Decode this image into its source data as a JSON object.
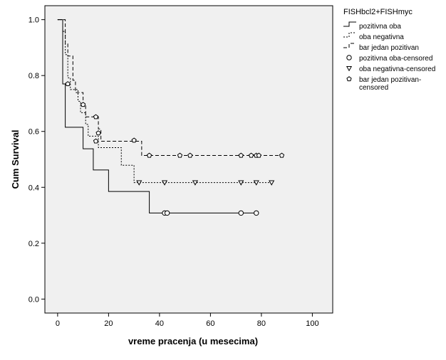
{
  "chart_data": {
    "type": "line",
    "xlabel": "vreme pracenja (u mesecima)",
    "ylabel": "Cum Survival",
    "xlim": [
      -5,
      108
    ],
    "ylim": [
      -0.05,
      1.05
    ],
    "x_ticks": [
      "0",
      "20",
      "40",
      "60",
      "80",
      "100"
    ],
    "x_tick_values": [
      0,
      20,
      40,
      60,
      80,
      100
    ],
    "y_ticks": [
      "0.0",
      "0.2",
      "0.4",
      "0.6",
      "0.8",
      "1.0"
    ],
    "y_tick_values": [
      0.0,
      0.2,
      0.4,
      0.6,
      0.8,
      1.0
    ],
    "legend_title": "FISHbcl2+FISHmyc",
    "legend_position": "right",
    "series": [
      {
        "name": "pozitivna oba",
        "dash": "solid",
        "steps": [
          [
            1,
            1.0
          ],
          [
            2,
            0.77
          ],
          [
            3,
            0.615
          ],
          [
            10,
            0.538
          ],
          [
            14,
            0.462
          ],
          [
            20,
            0.385
          ],
          [
            36,
            0.308
          ],
          [
            78,
            0.308
          ]
        ],
        "censored_marker": "circle",
        "censored_name": "pozitivna oba-censored",
        "censored": [
          [
            42,
            0.308
          ],
          [
            43,
            0.308
          ],
          [
            72,
            0.308
          ],
          [
            78,
            0.308
          ]
        ]
      },
      {
        "name": "oba negativna",
        "dash": "dotted",
        "steps": [
          [
            1,
            1.0
          ],
          [
            2,
            0.958
          ],
          [
            3,
            0.875
          ],
          [
            4,
            0.792
          ],
          [
            5,
            0.75
          ],
          [
            8,
            0.708
          ],
          [
            9,
            0.667
          ],
          [
            11,
            0.625
          ],
          [
            12,
            0.583
          ],
          [
            16,
            0.542
          ],
          [
            25,
            0.479
          ],
          [
            30,
            0.417
          ],
          [
            84,
            0.417
          ]
        ],
        "censored_marker": "triangle",
        "censored_name": "oba negativna-censored",
        "censored": [
          [
            32,
            0.417
          ],
          [
            42,
            0.417
          ],
          [
            54,
            0.417
          ],
          [
            72,
            0.417
          ],
          [
            78,
            0.417
          ],
          [
            84,
            0.417
          ]
        ]
      },
      {
        "name": "bar jedan pozitivan",
        "dash": "dashed",
        "steps": [
          [
            2,
            1.0
          ],
          [
            3,
            0.913
          ],
          [
            4,
            0.87
          ],
          [
            6,
            0.783
          ],
          [
            7,
            0.739
          ],
          [
            10,
            0.696
          ],
          [
            11,
            0.652
          ],
          [
            16,
            0.609
          ],
          [
            17,
            0.565
          ],
          [
            33,
            0.514
          ],
          [
            88,
            0.514
          ]
        ],
        "censored_marker": "pentagon",
        "censored_name": "bar jedan pozitivan-censored",
        "censored": [
          [
            4,
            0.77
          ],
          [
            15,
            0.565
          ],
          [
            36,
            0.514
          ],
          [
            48,
            0.514
          ],
          [
            52,
            0.514
          ],
          [
            72,
            0.514
          ],
          [
            76,
            0.514
          ],
          [
            78,
            0.514
          ],
          [
            79,
            0.514
          ],
          [
            30,
            0.568
          ],
          [
            88,
            0.514
          ],
          [
            15,
            0.652
          ],
          [
            10,
            0.696
          ],
          [
            16,
            0.594
          ]
        ]
      }
    ]
  }
}
